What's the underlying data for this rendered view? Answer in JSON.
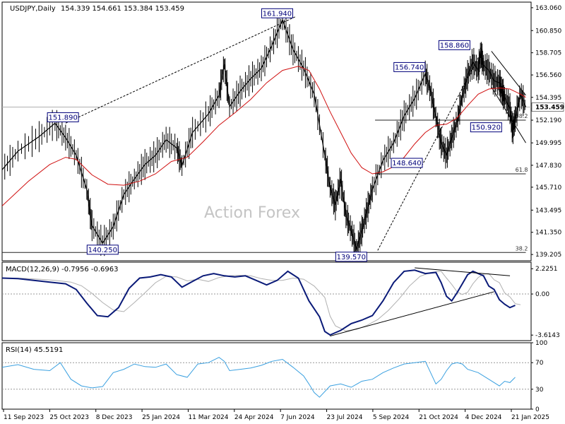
{
  "chart_data": {
    "type": "candlestick",
    "header": {
      "symbol_label": "USDJPY,Daily",
      "ohlc_label": "154.339 154.661 153.384 153.459"
    },
    "watermark": "Action Forex",
    "price_panel": {
      "ylim": [
        138.6,
        163.6
      ],
      "y_ticks": [
        "163.060",
        "160.850",
        "158.705",
        "156.560",
        "154.395",
        "152.190",
        "149.995",
        "147.830",
        "145.710",
        "143.495",
        "141.350",
        "139.205"
      ],
      "current_price_label": "153.459",
      "current_price": 153.459,
      "annotations": [
        {
          "text": "161.940",
          "x": 0.52,
          "y": 161.94
        },
        {
          "text": "151.890",
          "x": 0.115,
          "y": 151.89
        },
        {
          "text": "140.250",
          "x": 0.19,
          "y": 140.25
        },
        {
          "text": "139.570",
          "x": 0.66,
          "y": 139.57
        },
        {
          "text": "156.740",
          "x": 0.77,
          "y": 156.74
        },
        {
          "text": "148.640",
          "x": 0.765,
          "y": 148.64
        },
        {
          "text": "158.860",
          "x": 0.855,
          "y": 158.86
        },
        {
          "text": "150.920",
          "x": 0.915,
          "y": 150.92
        }
      ],
      "fib_levels": [
        {
          "text": "38.2",
          "x": 0.925,
          "y": 152.19
        },
        {
          "text": "61.8",
          "x": 0.925,
          "y": 147.0
        },
        {
          "text": "38.2",
          "x": 0.925,
          "y": 139.4
        }
      ]
    },
    "macd_panel": {
      "label": "MACD(12,26,9) -0.7956 -0.6963",
      "ylim": [
        -4.1,
        2.8
      ],
      "y_ticks": [
        "2.2251",
        "0.00",
        "-3.6143"
      ]
    },
    "rsi_panel": {
      "label": "RSI(14) 45.5191",
      "ylim": [
        0,
        100
      ],
      "y_ticks": [
        "100",
        "70",
        "30",
        "0"
      ],
      "levels": [
        70,
        30
      ]
    },
    "x_ticks": [
      "11 Sep 2023",
      "25 Oct 2023",
      "8 Dec 2023",
      "25 Jan 2024",
      "11 Mar 2024",
      "24 Apr 2024",
      "7 Jun 2024",
      "23 Jul 2024",
      "5 Sep 2024",
      "21 Oct 2024",
      "4 Dec 2024",
      "21 Jan 2025"
    ],
    "price_path": [
      [
        0.0,
        147.4
      ],
      [
        0.03,
        149.2
      ],
      [
        0.07,
        150.6
      ],
      [
        0.1,
        151.9
      ],
      [
        0.12,
        150.5
      ],
      [
        0.14,
        148.8
      ],
      [
        0.16,
        145.5
      ],
      [
        0.17,
        142.0
      ],
      [
        0.19,
        140.3
      ],
      [
        0.21,
        141.9
      ],
      [
        0.23,
        145.0
      ],
      [
        0.25,
        146.5
      ],
      [
        0.27,
        147.9
      ],
      [
        0.29,
        148.8
      ],
      [
        0.31,
        150.3
      ],
      [
        0.33,
        149.5
      ],
      [
        0.34,
        147.8
      ],
      [
        0.36,
        151.0
      ],
      [
        0.39,
        152.8
      ],
      [
        0.41,
        154.6
      ],
      [
        0.42,
        157.6
      ],
      [
        0.43,
        153.5
      ],
      [
        0.45,
        155.0
      ],
      [
        0.47,
        156.2
      ],
      [
        0.49,
        157.2
      ],
      [
        0.51,
        159.4
      ],
      [
        0.53,
        161.9
      ],
      [
        0.55,
        159.0
      ],
      [
        0.57,
        157.2
      ],
      [
        0.59,
        154.7
      ],
      [
        0.61,
        148.8
      ],
      [
        0.62,
        145.7
      ],
      [
        0.63,
        144.0
      ],
      [
        0.64,
        146.5
      ],
      [
        0.65,
        143.0
      ],
      [
        0.66,
        141.5
      ],
      [
        0.67,
        139.7
      ],
      [
        0.68,
        141.5
      ],
      [
        0.69,
        143.5
      ],
      [
        0.7,
        145.5
      ],
      [
        0.72,
        148.3
      ],
      [
        0.74,
        150.0
      ],
      [
        0.76,
        152.6
      ],
      [
        0.78,
        154.3
      ],
      [
        0.8,
        156.7
      ],
      [
        0.81,
        155.0
      ],
      [
        0.82,
        152.5
      ],
      [
        0.83,
        150.0
      ],
      [
        0.84,
        148.8
      ],
      [
        0.85,
        150.5
      ],
      [
        0.86,
        152.0
      ],
      [
        0.87,
        154.5
      ],
      [
        0.88,
        156.5
      ],
      [
        0.89,
        157.8
      ],
      [
        0.9,
        157.0
      ],
      [
        0.905,
        158.7
      ],
      [
        0.91,
        157.5
      ],
      [
        0.92,
        157.0
      ],
      [
        0.93,
        156.0
      ],
      [
        0.94,
        155.8
      ],
      [
        0.945,
        155.0
      ],
      [
        0.95,
        154.4
      ],
      [
        0.96,
        153.3
      ],
      [
        0.965,
        151.2
      ],
      [
        0.97,
        152.3
      ],
      [
        0.98,
        154.7
      ],
      [
        0.99,
        153.46
      ]
    ],
    "ma_path": [
      [
        0.0,
        143.9
      ],
      [
        0.05,
        146.3
      ],
      [
        0.09,
        147.9
      ],
      [
        0.12,
        148.6
      ],
      [
        0.14,
        148.4
      ],
      [
        0.17,
        146.9
      ],
      [
        0.2,
        146.0
      ],
      [
        0.23,
        145.9
      ],
      [
        0.26,
        146.3
      ],
      [
        0.29,
        147.0
      ],
      [
        0.32,
        148.2
      ],
      [
        0.35,
        148.6
      ],
      [
        0.38,
        150.1
      ],
      [
        0.41,
        151.7
      ],
      [
        0.44,
        152.9
      ],
      [
        0.47,
        154.2
      ],
      [
        0.5,
        155.8
      ],
      [
        0.53,
        157.0
      ],
      [
        0.56,
        157.4
      ],
      [
        0.58,
        157.0
      ],
      [
        0.6,
        155.2
      ],
      [
        0.62,
        153.0
      ],
      [
        0.64,
        151.0
      ],
      [
        0.66,
        149.0
      ],
      [
        0.68,
        147.6
      ],
      [
        0.7,
        147.0
      ],
      [
        0.72,
        147.2
      ],
      [
        0.74,
        147.7
      ],
      [
        0.76,
        148.6
      ],
      [
        0.78,
        149.9
      ],
      [
        0.8,
        151.0
      ],
      [
        0.82,
        151.7
      ],
      [
        0.84,
        151.8
      ],
      [
        0.86,
        152.4
      ],
      [
        0.88,
        153.6
      ],
      [
        0.9,
        154.7
      ],
      [
        0.92,
        155.2
      ],
      [
        0.94,
        155.3
      ],
      [
        0.96,
        155.2
      ],
      [
        0.98,
        154.7
      ],
      [
        0.99,
        154.4
      ]
    ],
    "macd_path": [
      [
        0.0,
        1.4
      ],
      [
        0.03,
        1.35
      ],
      [
        0.06,
        1.2
      ],
      [
        0.09,
        1.05
      ],
      [
        0.12,
        0.9
      ],
      [
        0.14,
        0.4
      ],
      [
        0.16,
        -0.8
      ],
      [
        0.18,
        -1.9
      ],
      [
        0.2,
        -2.0
      ],
      [
        0.22,
        -1.2
      ],
      [
        0.24,
        0.5
      ],
      [
        0.26,
        1.4
      ],
      [
        0.28,
        1.5
      ],
      [
        0.3,
        1.7
      ],
      [
        0.32,
        1.5
      ],
      [
        0.34,
        0.6
      ],
      [
        0.36,
        1.1
      ],
      [
        0.38,
        1.6
      ],
      [
        0.4,
        1.8
      ],
      [
        0.42,
        1.6
      ],
      [
        0.44,
        1.5
      ],
      [
        0.46,
        1.6
      ],
      [
        0.48,
        1.2
      ],
      [
        0.5,
        0.8
      ],
      [
        0.52,
        1.2
      ],
      [
        0.54,
        2.0
      ],
      [
        0.56,
        1.4
      ],
      [
        0.58,
        -0.6
      ],
      [
        0.6,
        -2.0
      ],
      [
        0.61,
        -3.3
      ],
      [
        0.62,
        -3.6
      ],
      [
        0.64,
        -3.2
      ],
      [
        0.66,
        -2.6
      ],
      [
        0.68,
        -2.3
      ],
      [
        0.7,
        -1.9
      ],
      [
        0.72,
        -0.6
      ],
      [
        0.74,
        1.0
      ],
      [
        0.76,
        2.0
      ],
      [
        0.78,
        2.1
      ],
      [
        0.8,
        1.8
      ],
      [
        0.82,
        1.9
      ],
      [
        0.83,
        1.0
      ],
      [
        0.84,
        -0.2
      ],
      [
        0.85,
        -0.6
      ],
      [
        0.86,
        0.1
      ],
      [
        0.87,
        0.9
      ],
      [
        0.88,
        1.7
      ],
      [
        0.89,
        2.0
      ],
      [
        0.9,
        1.8
      ],
      [
        0.91,
        1.6
      ],
      [
        0.92,
        0.7
      ],
      [
        0.93,
        0.4
      ],
      [
        0.94,
        -0.5
      ],
      [
        0.95,
        -0.9
      ],
      [
        0.96,
        -1.2
      ],
      [
        0.97,
        -1.0
      ]
    ],
    "rsi_path": [
      [
        0.0,
        63
      ],
      [
        0.03,
        67
      ],
      [
        0.06,
        60
      ],
      [
        0.09,
        58
      ],
      [
        0.11,
        70
      ],
      [
        0.13,
        45
      ],
      [
        0.15,
        35
      ],
      [
        0.17,
        32
      ],
      [
        0.19,
        34
      ],
      [
        0.21,
        55
      ],
      [
        0.23,
        60
      ],
      [
        0.25,
        68
      ],
      [
        0.27,
        64
      ],
      [
        0.29,
        63
      ],
      [
        0.31,
        68
      ],
      [
        0.33,
        52
      ],
      [
        0.35,
        48
      ],
      [
        0.37,
        68
      ],
      [
        0.39,
        70
      ],
      [
        0.41,
        78
      ],
      [
        0.42,
        72
      ],
      [
        0.43,
        58
      ],
      [
        0.45,
        60
      ],
      [
        0.47,
        62
      ],
      [
        0.49,
        66
      ],
      [
        0.51,
        72
      ],
      [
        0.53,
        75
      ],
      [
        0.55,
        63
      ],
      [
        0.57,
        50
      ],
      [
        0.58,
        38
      ],
      [
        0.59,
        25
      ],
      [
        0.6,
        18
      ],
      [
        0.62,
        35
      ],
      [
        0.64,
        38
      ],
      [
        0.66,
        33
      ],
      [
        0.68,
        42
      ],
      [
        0.7,
        45
      ],
      [
        0.72,
        55
      ],
      [
        0.74,
        62
      ],
      [
        0.76,
        68
      ],
      [
        0.78,
        70
      ],
      [
        0.8,
        72
      ],
      [
        0.81,
        55
      ],
      [
        0.82,
        38
      ],
      [
        0.83,
        45
      ],
      [
        0.84,
        58
      ],
      [
        0.85,
        68
      ],
      [
        0.86,
        70
      ],
      [
        0.87,
        68
      ],
      [
        0.88,
        60
      ],
      [
        0.9,
        55
      ],
      [
        0.92,
        45
      ],
      [
        0.94,
        35
      ],
      [
        0.95,
        42
      ],
      [
        0.96,
        40
      ],
      [
        0.97,
        48
      ]
    ]
  }
}
